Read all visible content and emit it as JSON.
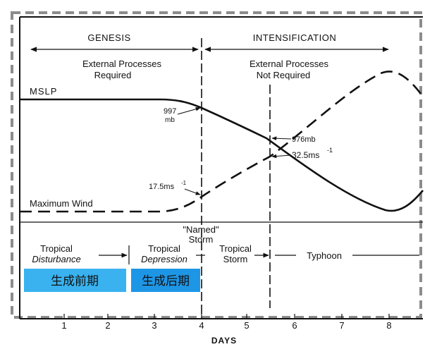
{
  "phases": {
    "genesis": "GENESIS",
    "intensification": "INTENSIFICATION",
    "external_required": [
      "External Processes",
      "Required"
    ],
    "external_not_required": [
      "External Processes",
      "Not Required"
    ]
  },
  "curves": {
    "mslp_label": "MSLP",
    "wind_label": "Maximum Wind"
  },
  "annotations": {
    "p997": [
      "997",
      "mb"
    ],
    "p976": "976mb",
    "w17": "17.5ms",
    "w17_exp": "-1",
    "w32": "32.5ms",
    "w32_exp": "-1"
  },
  "stages": {
    "named": [
      "\"Named\"",
      "Storm"
    ],
    "disturbance": [
      "Tropical",
      "Disturbance"
    ],
    "depression": [
      "Tropical",
      "Depression"
    ],
    "storm": [
      "Tropical",
      "Storm"
    ],
    "typhoon": "Typhoon"
  },
  "chinese_boxes": {
    "early": {
      "text": "生成前期",
      "color": "#39b2ef"
    },
    "late": {
      "text": "生成后期",
      "color": "#1e96e6"
    }
  },
  "axis": {
    "ticks": [
      "1",
      "2",
      "3",
      "4",
      "5",
      "6",
      "7",
      "8"
    ],
    "xlabel": "DAYS"
  },
  "colors": {
    "frame_dash": "#8c8c8c",
    "ink": "#111111"
  }
}
